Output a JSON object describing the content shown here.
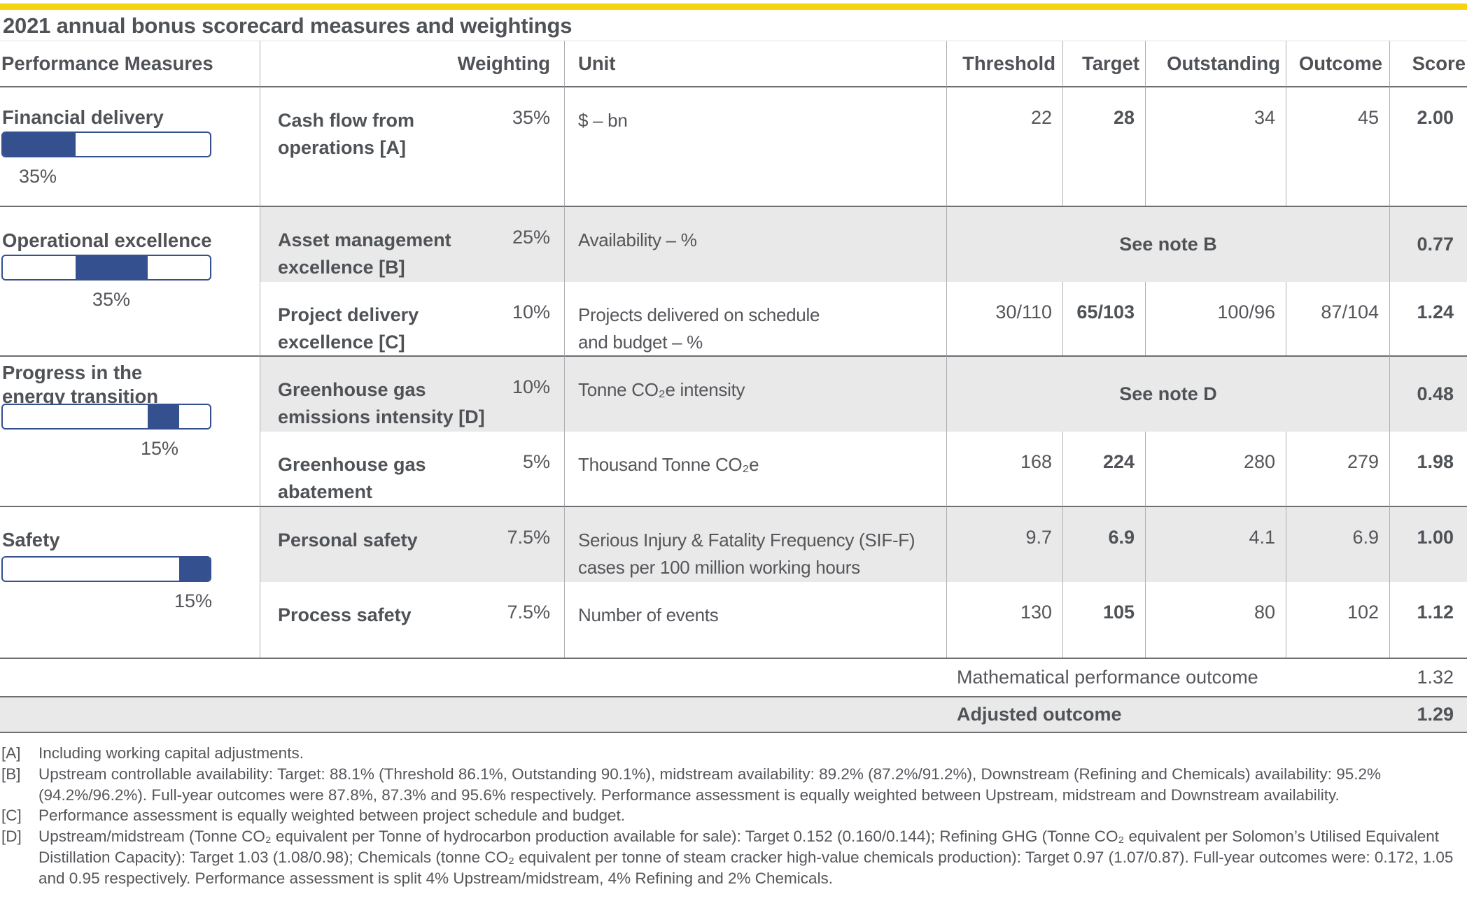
{
  "page": {
    "title": "2021 annual bonus scorecard measures and weightings"
  },
  "colors": {
    "accent_yellow": "#F5D30F",
    "bar_blue": "#35508F",
    "shaded_row_gray": "#E9E9E9",
    "text_gray": "#54565A"
  },
  "table": {
    "columns": [
      "Performance Measures",
      "Weighting",
      "Unit",
      "Threshold",
      "Target",
      "Outstanding",
      "Outcome",
      "Score"
    ],
    "groups": [
      {
        "title_lines": [
          "Financial delivery"
        ],
        "weight_label": "35%",
        "bar": {
          "start_pct": 0,
          "end_pct": 35
        },
        "rows": [
          {
            "measure_lines": [
              "Cash flow from",
              "operations [A]"
            ],
            "weighting": "35%",
            "unit_lines": [
              "$ – bn"
            ],
            "threshold": "22",
            "target": "28",
            "outstanding": "34",
            "outcome": "45",
            "score": "2.00"
          }
        ]
      },
      {
        "title_lines": [
          "Operational excellence"
        ],
        "weight_label": "35%",
        "bar": {
          "start_pct": 35,
          "end_pct": 70
        },
        "rows": [
          {
            "measure_lines": [
              "Asset management",
              "excellence [B]"
            ],
            "weighting": "25%",
            "unit_lines": [
              "Availability – %"
            ],
            "note": "See note B",
            "score": "0.77"
          },
          {
            "measure_lines": [
              "Project delivery",
              "excellence [C]"
            ],
            "weighting": "10%",
            "unit_lines": [
              "Projects delivered on schedule",
              "and budget – %"
            ],
            "threshold": "30/110",
            "target": "65/103",
            "outstanding": "100/96",
            "outcome": "87/104",
            "score": "1.24"
          }
        ]
      },
      {
        "title_lines": [
          "Progress in the",
          "energy transition"
        ],
        "weight_label": "15%",
        "bar": {
          "start_pct": 70,
          "end_pct": 85
        },
        "rows": [
          {
            "measure_lines": [
              "Greenhouse gas",
              "emissions intensity [D]"
            ],
            "weighting": "10%",
            "unit_lines": [
              "Tonne CO₂e intensity"
            ],
            "note": "See note D",
            "score": "0.48"
          },
          {
            "measure_lines": [
              "Greenhouse gas",
              "abatement"
            ],
            "weighting": "5%",
            "unit_lines": [
              "Thousand Tonne CO₂e"
            ],
            "threshold": "168",
            "target": "224",
            "outstanding": "280",
            "outcome": "279",
            "score": "1.98"
          }
        ]
      },
      {
        "title_lines": [
          "Safety"
        ],
        "weight_label": "15%",
        "bar": {
          "start_pct": 85,
          "end_pct": 100
        },
        "rows": [
          {
            "measure_lines": [
              "Personal safety"
            ],
            "weighting": "7.5%",
            "unit_lines": [
              "Serious Injury & Fatality Frequency (SIF-F)",
              "cases per 100 million working hours"
            ],
            "threshold": "9.7",
            "target": "6.9",
            "outstanding": "4.1",
            "outcome": "6.9",
            "score": "1.00"
          },
          {
            "measure_lines": [
              "Process safety"
            ],
            "weighting": "7.5%",
            "unit_lines": [
              "Number of events"
            ],
            "threshold": "130",
            "target": "105",
            "outstanding": "80",
            "outcome": "102",
            "score": "1.12"
          }
        ]
      }
    ],
    "summary": [
      {
        "label": "Mathematical performance outcome",
        "value": "1.32"
      },
      {
        "label": "Adjusted outcome",
        "value": "1.29"
      }
    ]
  },
  "footnotes": [
    {
      "marker": "[A]",
      "text": "Including working capital adjustments."
    },
    {
      "marker": "[B]",
      "text": "Upstream controllable availability: Target: 88.1% (Threshold 86.1%, Outstanding 90.1%), midstream availability: 89.2% (87.2%/91.2%), Downstream (Refining and Chemicals) availability: 95.2% (94.2%/96.2%). Full-year outcomes were 87.8%, 87.3% and 95.6% respectively. Performance assessment is equally weighted between Upstream, midstream and Downstream availability."
    },
    {
      "marker": "[C]",
      "text": "Performance assessment is equally weighted between project schedule and budget."
    },
    {
      "marker": "[D]",
      "text": "Upstream/midstream (Tonne CO₂ equivalent per Tonne of hydrocarbon production available for sale): Target 0.152 (0.160/0.144); Refining GHG (Tonne CO₂ equivalent per Solomon’s Utilised Equivalent Distillation Capacity): Target 1.03 (1.08/0.98); Chemicals (tonne CO₂ equivalent per tonne of steam cracker high-value chemicals production): Target 0.97 (1.07/0.87). Full-year outcomes were: 0.172, 1.05 and 0.95 respectively. Performance assessment is split 4% Upstream/midstream, 4% Refining and 2% Chemicals."
    }
  ]
}
